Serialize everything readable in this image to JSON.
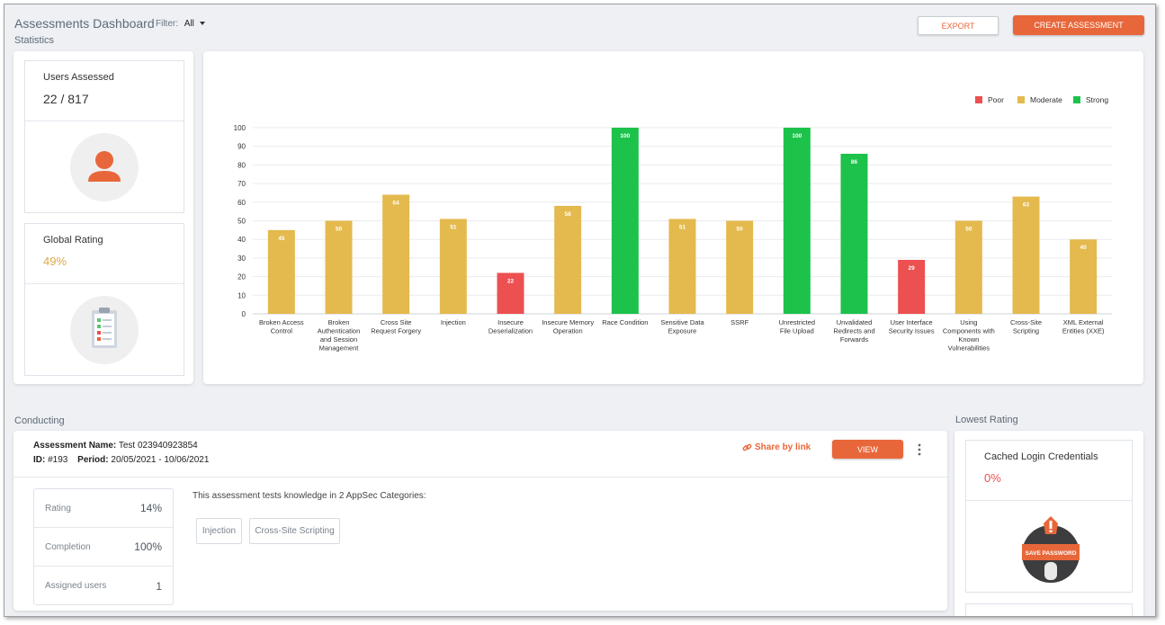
{
  "header": {
    "title": "Assessments Dashboard",
    "filter_label": "Filter:",
    "filter_value": "All",
    "export_label": "EXPORT",
    "create_label": "CREATE ASSESSMENT"
  },
  "sections": {
    "statistics": "Statistics",
    "conducting": "Conducting",
    "lowest_rating": "Lowest Rating"
  },
  "users_assessed": {
    "label": "Users Assessed",
    "value": "22 / 817",
    "icon": "user-icon"
  },
  "global_rating": {
    "label": "Global Rating",
    "value": "49%",
    "icon": "clipboard-icon"
  },
  "colors": {
    "accent": "#e8673a",
    "poor": "#ec5050",
    "moderate": "#e4b94e",
    "strong": "#1dc24b",
    "rating_value": "#e0a94a",
    "lowest_value": "#ec5050"
  },
  "chart_data": {
    "type": "bar",
    "legend": [
      "Poor",
      "Moderate",
      "Strong"
    ],
    "legend_position": "top-right",
    "ylim": [
      0,
      100
    ],
    "yticks": [
      0,
      10,
      20,
      30,
      40,
      50,
      60,
      70,
      80,
      90,
      100
    ],
    "grid": true,
    "categories": [
      "Broken Access Control",
      "Broken Authentication and Session Management",
      "Cross Site Request Forgery",
      "Injection",
      "Insecure Deserialization",
      "Insecure Memory Operation",
      "Race Condition",
      "Sensitive Data Exposure",
      "SSRF",
      "Unrestricted File Upload",
      "Unvalidated Redirects and Forwards",
      "User Interface Security Issues",
      "Using Components with Known Vulnerabilities",
      "Cross-Site Scripting",
      "XML External Entities (XXE)"
    ],
    "values": [
      45,
      50,
      64,
      51,
      22,
      58,
      100,
      51,
      50,
      100,
      86,
      29,
      50,
      63,
      40
    ],
    "ratings": [
      "Moderate",
      "Moderate",
      "Moderate",
      "Moderate",
      "Poor",
      "Moderate",
      "Strong",
      "Moderate",
      "Moderate",
      "Strong",
      "Strong",
      "Poor",
      "Moderate",
      "Moderate",
      "Moderate"
    ]
  },
  "assessment": {
    "name_label": "Assessment Name:",
    "name": "Test 023940923854",
    "id_label": "ID:",
    "id": "#193",
    "period_label": "Period:",
    "period": "20/05/2021 - 10/06/2021",
    "share_label": "Share by link",
    "view_label": "VIEW",
    "description": "This assessment tests knowledge in 2 AppSec Categories:",
    "stats": [
      {
        "label": "Rating",
        "value": "14%"
      },
      {
        "label": "Completion",
        "value": "100%"
      },
      {
        "label": "Assigned users",
        "value": "1"
      }
    ],
    "tags": [
      "Injection",
      "Cross-Site Scripting"
    ]
  },
  "lowest": {
    "name": "Cached Login Credentials",
    "value": "0%",
    "badge_text": "SAVE PASSWORD"
  }
}
